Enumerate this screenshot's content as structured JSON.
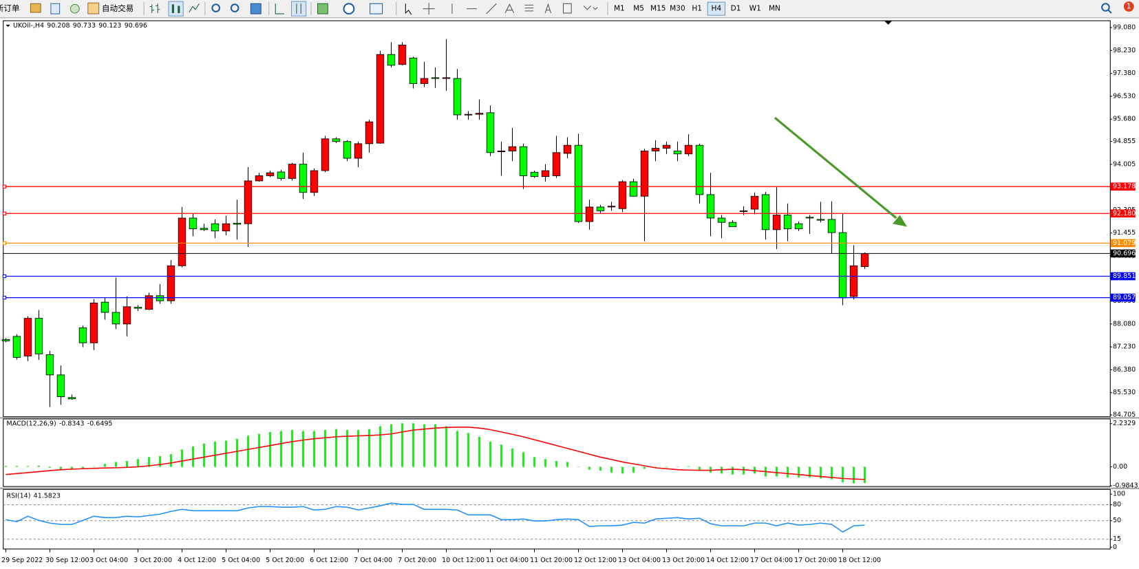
{
  "toolbar": {
    "new_order": "新订单",
    "auto_trading": "自动交易",
    "timeframes": [
      "M1",
      "M5",
      "M15",
      "M30",
      "H1",
      "H4",
      "D1",
      "W1",
      "MN"
    ],
    "active_timeframe": "H4",
    "notifications": 1
  },
  "chart_data": [
    {
      "type": "candlestick",
      "title": "UKOil-,H4",
      "x": [
        "29 Sep 2022",
        null,
        null,
        null,
        "30 Sep 12:00",
        null,
        null,
        null,
        "3 Oct 04:00",
        null,
        null,
        null,
        "3 Oct 20:00",
        null,
        null,
        null,
        "4 Oct 12:00",
        null,
        null,
        null,
        "5 Oct 04:00",
        null,
        null,
        null,
        "5 Oct 20:00",
        null,
        null,
        null,
        "6 Oct 12:00",
        null,
        null,
        null,
        "7 Oct 04:00",
        null,
        null,
        null,
        "7 Oct 20:00",
        null,
        null,
        null,
        "10 Oct 12:00",
        null,
        null,
        null,
        "11 Oct 04:00",
        null,
        null,
        null,
        "11 Oct 20:00",
        null,
        null,
        null,
        "12 Oct 12:00",
        null,
        null,
        null,
        "13 Oct 04:00",
        null,
        null,
        null,
        "13 Oct 20:00",
        null,
        null,
        null,
        "14 Oct 12:00",
        null,
        null,
        null,
        "17 Oct 04:00",
        null,
        null,
        null,
        "17 Oct 20:00",
        null,
        null,
        null,
        "18 Oct 12:00",
        null,
        null
      ],
      "open": [
        87.5,
        87.62,
        86.89,
        88.29,
        86.94,
        86.19,
        85.35,
        87.94,
        87.38,
        88.89,
        88.51,
        88.08,
        88.7,
        88.62,
        89.13,
        88.94,
        90.24,
        92.01,
        91.63,
        91.8,
        91.53,
        91.82,
        91.8,
        93.39,
        93.58,
        93.72,
        93.48,
        94.01,
        92.96,
        93.77,
        94.95,
        94.85,
        94.23,
        94.77,
        94.79,
        98.08,
        97.71,
        97.95,
        97.0,
        97.22,
        97.19,
        97.19,
        95.84,
        95.86,
        95.92,
        94.47,
        94.5,
        94.66,
        93.71,
        93.55,
        93.58,
        94.41,
        94.71,
        91.88,
        92.42,
        92.42,
        92.36,
        93.36,
        92.82,
        94.5,
        94.6,
        94.5,
        94.39,
        94.71,
        92.88,
        92.01,
        91.85,
        92.28,
        92.34,
        92.88,
        91.58,
        92.12,
        91.8,
        92.04,
        91.96,
        91.96,
        91.47,
        89.1,
        90.208
      ],
      "high": [
        87.55,
        87.7,
        88.37,
        88.6,
        87.08,
        86.54,
        85.46,
        88.02,
        89.0,
        89.05,
        89.8,
        89.1,
        88.78,
        89.24,
        89.56,
        90.45,
        92.42,
        92.18,
        91.8,
        91.96,
        92.1,
        92.69,
        93.9,
        93.69,
        93.77,
        93.8,
        94.06,
        94.44,
        93.85,
        95.06,
        95.01,
        94.9,
        94.85,
        95.66,
        98.22,
        98.54,
        98.54,
        98.0,
        97.81,
        97.6,
        98.65,
        97.54,
        95.98,
        96.41,
        96.19,
        94.85,
        95.36,
        94.77,
        93.77,
        94.01,
        95.06,
        95.01,
        95.14,
        92.69,
        92.5,
        92.61,
        93.42,
        93.47,
        94.58,
        94.9,
        94.85,
        94.85,
        95.12,
        94.77,
        93.69,
        92.12,
        91.93,
        92.45,
        92.96,
        92.98,
        93.15,
        92.55,
        91.88,
        92.12,
        92.61,
        92.63,
        92.2,
        91.0,
        90.733
      ],
      "low": [
        87.4,
        86.76,
        86.7,
        86.75,
        85.0,
        85.08,
        85.27,
        87.22,
        87.11,
        88.24,
        87.89,
        87.62,
        88.56,
        88.6,
        88.83,
        88.83,
        90.18,
        91.34,
        91.53,
        91.26,
        91.37,
        91.21,
        90.94,
        93.36,
        93.53,
        93.4,
        93.4,
        92.72,
        92.83,
        93.71,
        94.79,
        94.12,
        93.9,
        94.44,
        94.77,
        97.6,
        97.68,
        96.82,
        96.87,
        96.84,
        96.73,
        95.66,
        95.66,
        95.66,
        94.31,
        93.58,
        94.12,
        93.09,
        93.5,
        93.36,
        93.5,
        94.23,
        91.83,
        91.58,
        92.18,
        92.28,
        92.23,
        92.82,
        91.15,
        94.12,
        94.39,
        94.12,
        94.31,
        92.55,
        91.34,
        91.26,
        91.69,
        92.12,
        92.15,
        91.21,
        90.86,
        91.15,
        91.53,
        91.42,
        91.85,
        90.7,
        88.78,
        88.99,
        90.123
      ],
      "close": [
        87.45,
        86.84,
        88.29,
        86.97,
        86.19,
        85.38,
        85.3,
        87.38,
        88.86,
        88.51,
        88.08,
        88.72,
        88.66,
        89.13,
        88.94,
        90.24,
        92.01,
        91.61,
        91.58,
        91.53,
        91.8,
        91.78,
        93.39,
        93.58,
        93.69,
        93.48,
        94.01,
        92.96,
        93.77,
        94.95,
        94.85,
        94.23,
        94.77,
        95.58,
        98.08,
        97.68,
        98.43,
        97.0,
        97.19,
        97.19,
        97.22,
        95.84,
        95.86,
        95.9,
        94.44,
        94.5,
        94.66,
        93.58,
        93.55,
        93.77,
        94.44,
        94.71,
        91.88,
        92.42,
        92.28,
        92.45,
        93.36,
        92.82,
        94.5,
        94.6,
        94.71,
        94.39,
        94.71,
        92.88,
        92.01,
        91.85,
        91.69,
        92.28,
        92.82,
        91.58,
        92.12,
        91.61,
        91.61,
        92.01,
        91.93,
        91.47,
        89.05,
        90.24,
        90.696
      ],
      "up_color": "#ff0000",
      "down_color": "#00ff00",
      "ylim": [
        84.65,
        99.32
      ],
      "yticks": [
        {
          "value": 99.08,
          "label": "99.080"
        },
        {
          "value": 98.23,
          "label": "98.230"
        },
        {
          "value": 97.38,
          "label": "97.380"
        },
        {
          "value": 96.53,
          "label": "96.530"
        },
        {
          "value": 95.68,
          "label": "95.680"
        },
        94.855,
        94.005,
        93.155,
        92.305,
        91.455,
        90.605,
        {
          "value": 89.78,
          "label": "89.780"
        },
        {
          "value": 88.93,
          "label": "88.930"
        },
        {
          "value": 88.08,
          "label": "88.080"
        },
        {
          "value": 87.23,
          "label": "87.230"
        },
        {
          "value": 86.38,
          "label": "86.380"
        },
        {
          "value": 85.53,
          "label": "85.530"
        },
        84.705
      ],
      "levels": [
        {
          "value": 93.178,
          "color": "#ff0000"
        },
        {
          "value": 92.18,
          "label": "92.180",
          "color": "#ff0000"
        },
        {
          "value": 91.079,
          "color": "#ff8c00"
        },
        {
          "value": 89.851,
          "color": "#0000ff"
        },
        {
          "value": 89.057,
          "color": "#0000ff"
        }
      ]
    },
    {
      "type": "macd",
      "title": "MACD(12,26,9)",
      "series": [
        {
          "color": "#00ff00",
          "values": [
            0.05,
            0.05,
            0.04,
            0.06,
            -0.05,
            -0.15,
            -0.12,
            -0.08,
            0.02,
            0.15,
            0.25,
            0.3,
            0.4,
            0.5,
            0.55,
            0.65,
            0.9,
            1.05,
            1.2,
            1.3,
            1.35,
            1.45,
            1.6,
            1.7,
            1.8,
            1.85,
            1.9,
            1.85,
            1.85,
            1.9,
            1.95,
            1.9,
            1.9,
            1.95,
            2.1,
            2.2,
            2.25,
            2.25,
            2.2,
            2.2,
            2.1,
            1.85,
            1.75,
            1.55,
            1.3,
            1.15,
            0.95,
            0.75,
            0.5,
            0.4,
            0.3,
            0.25,
            -0.02,
            -0.15,
            -0.2,
            -0.3,
            -0.35,
            -0.3,
            -0.1,
            -0.05,
            -0.03,
            -0.02,
            0.03,
            -0.15,
            -0.3,
            -0.35,
            -0.4,
            -0.4,
            -0.35,
            -0.5,
            -0.5,
            -0.55,
            -0.55,
            -0.55,
            -0.6,
            -0.65,
            -0.8,
            -0.85,
            -0.8343
          ]
        },
        {
          "color": "#ff0000",
          "values": [
            -0.4,
            -0.35,
            -0.3,
            -0.25,
            -0.2,
            -0.15,
            -0.12,
            -0.1,
            -0.08,
            -0.06,
            -0.05,
            -0.03,
            0.0,
            0.05,
            0.12,
            0.2,
            0.3,
            0.4,
            0.5,
            0.6,
            0.7,
            0.8,
            0.9,
            1.0,
            1.1,
            1.2,
            1.3,
            1.38,
            1.45,
            1.5,
            1.55,
            1.58,
            1.6,
            1.62,
            1.65,
            1.7,
            1.8,
            1.9,
            1.95,
            2.0,
            2.03,
            2.05,
            2.05,
            2.0,
            1.92,
            1.8,
            1.68,
            1.55,
            1.4,
            1.25,
            1.1,
            0.95,
            0.8,
            0.65,
            0.5,
            0.38,
            0.25,
            0.15,
            0.05,
            -0.05,
            -0.1,
            -0.15,
            -0.17,
            -0.18,
            -0.18,
            -0.15,
            -0.13,
            -0.15,
            -0.2,
            -0.25,
            -0.3,
            -0.35,
            -0.4,
            -0.45,
            -0.5,
            -0.55,
            -0.6,
            -0.63,
            -0.6495
          ]
        }
      ],
      "ylim": [
        -1.0,
        2.456
      ],
      "yticks": [
        2.2329,
        {
          "value": 0,
          "label": "0.00"
        },
        -0.9843
      ]
    },
    {
      "type": "line",
      "title": "RSI(14)",
      "color": "#1e90ff",
      "values": [
        51.9,
        48.1,
        58.4,
        50.6,
        45.5,
        42.9,
        42.9,
        50.6,
        58.4,
        55.8,
        55.8,
        58.4,
        57.1,
        59.7,
        62.3,
        67.5,
        71.4,
        68.8,
        68.8,
        68.8,
        68.8,
        68.8,
        74.0,
        76.6,
        76.6,
        75.3,
        75.3,
        76.6,
        70.1,
        71.4,
        76.6,
        75.3,
        70.1,
        74.0,
        77.9,
        83.1,
        80.5,
        80.5,
        71.4,
        71.4,
        71.4,
        70.1,
        61.0,
        61.0,
        61.0,
        51.9,
        51.9,
        53.2,
        49.4,
        49.4,
        51.9,
        53.2,
        51.9,
        39.0,
        40.3,
        40.3,
        41.6,
        46.8,
        45.5,
        53.2,
        54.5,
        55.8,
        53.2,
        54.5,
        44.2,
        40.3,
        40.3,
        40.3,
        45.5,
        45.5,
        40.3,
        45.5,
        41.6,
        42.9,
        45.5,
        42.9,
        28.6,
        40.3,
        41.5823
      ],
      "ylim": [
        0,
        100
      ],
      "yticks": [
        100,
        80,
        50,
        15,
        0
      ]
    }
  ]
}
